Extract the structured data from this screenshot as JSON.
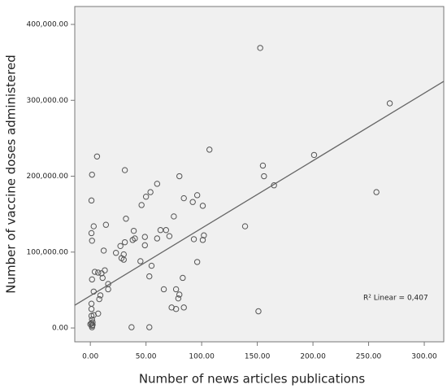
{
  "chart_data": {
    "type": "scatter",
    "x_label": "Number of news articles publications",
    "y_label": "Number of vaccine doses administered",
    "annotation": "R² Linear = 0,407",
    "color": "#555555",
    "xlim": [
      -14,
      317.5
    ],
    "ylim": [
      -18200,
      423600
    ],
    "xticks": [
      {
        "value": 0,
        "label": "0.00"
      },
      {
        "value": 50,
        "label": "50.00"
      },
      {
        "value": 100,
        "label": "100.00"
      },
      {
        "value": 150,
        "label": "150.00"
      },
      {
        "value": 200,
        "label": "200.00"
      },
      {
        "value": 250,
        "label": "250.00"
      },
      {
        "value": 300,
        "label": "300.00"
      }
    ],
    "yticks": [
      {
        "value": 0,
        "label": "0.00"
      },
      {
        "value": 100000,
        "label": "100,000.00"
      },
      {
        "value": 200000,
        "label": "200,000.00"
      },
      {
        "value": 300000,
        "label": "300,000.00"
      },
      {
        "value": 400000,
        "label": "400,000.00"
      }
    ],
    "trend_line": {
      "color": "#666666",
      "x": [
        -14,
        317.5
      ],
      "values": [
        30000,
        325000
      ]
    },
    "x": [
      152.6,
      269,
      155,
      156,
      201,
      165,
      257,
      107,
      6,
      31,
      1.5,
      1,
      80,
      60,
      54,
      50,
      46,
      96,
      92,
      84,
      75,
      32,
      14,
      3,
      1,
      1.5,
      139,
      101,
      102,
      101,
      93,
      63,
      68,
      71,
      60,
      49,
      49,
      39,
      40,
      38,
      31,
      27,
      23,
      30,
      30,
      28,
      45,
      55,
      96,
      12,
      13,
      4,
      7,
      10,
      1.5,
      11,
      53,
      83,
      16,
      16,
      66,
      77,
      80,
      9,
      3,
      8,
      79,
      73,
      77,
      84,
      1,
      1,
      7,
      1,
      1.5,
      1,
      1.5,
      1.5,
      0,
      2,
      3,
      151,
      37,
      53,
      2
    ],
    "values": [
      369000,
      296000,
      214000,
      200000,
      228000,
      188000,
      179000,
      235000,
      226000,
      208000,
      202000,
      168000,
      200000,
      190000,
      179000,
      173000,
      162000,
      175000,
      166000,
      171000,
      147000,
      144000,
      136000,
      134000,
      125000,
      115000,
      134000,
      161000,
      122000,
      116000,
      117000,
      129000,
      129000,
      121000,
      118000,
      120000,
      109000,
      128000,
      118000,
      116000,
      113000,
      108000,
      99000,
      97000,
      90000,
      92000,
      88000,
      82000,
      87000,
      102000,
      76000,
      74000,
      73000,
      72000,
      64000,
      66000,
      68000,
      66000,
      58000,
      51000,
      51000,
      51000,
      44000,
      43000,
      48000,
      38000,
      39000,
      27000,
      25000,
      27000,
      32000,
      25000,
      19000,
      16000,
      11000,
      6000,
      3000,
      1000,
      5000,
      7500,
      17000,
      22000,
      1000,
      1000,
      4000
    ]
  }
}
